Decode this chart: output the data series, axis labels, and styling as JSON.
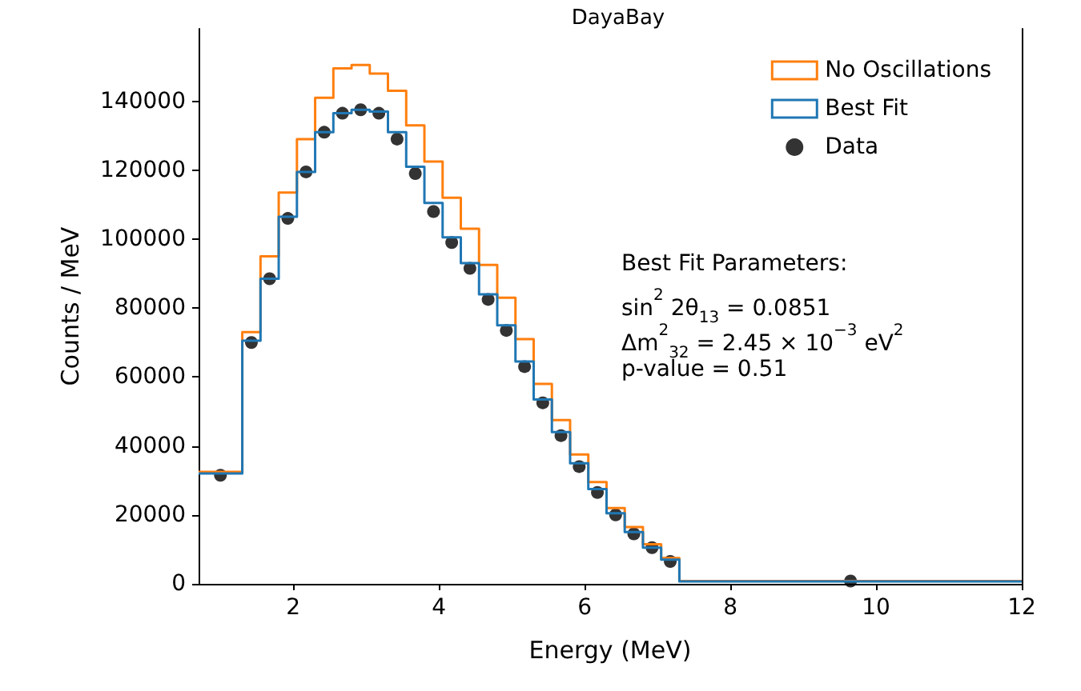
{
  "chart_data": {
    "type": "histogram",
    "title": "DayaBay",
    "xlabel": "Energy (MeV)",
    "ylabel": "Counts / MeV",
    "bins": [
      0.7,
      1.3,
      1.55,
      1.8,
      2.05,
      2.3,
      2.55,
      2.8,
      3.05,
      3.3,
      3.55,
      3.8,
      4.05,
      4.3,
      4.55,
      4.8,
      5.05,
      5.3,
      5.55,
      5.8,
      6.05,
      6.3,
      6.55,
      6.8,
      7.05,
      7.3,
      12
    ],
    "series": [
      {
        "name": "No Oscillations",
        "color": "#ff7f0e",
        "values": [
          32500,
          73000,
          95000,
          113500,
          129000,
          141000,
          149500,
          150500,
          148000,
          143000,
          133000,
          122500,
          112000,
          103000,
          92500,
          83000,
          71000,
          58000,
          47500,
          37500,
          29500,
          22000,
          16500,
          11500,
          7500,
          800
        ]
      },
      {
        "name": "Best Fit",
        "color": "#1f77b4",
        "values": [
          32000,
          70500,
          88500,
          106500,
          119500,
          131000,
          136500,
          137500,
          137000,
          131000,
          121000,
          110500,
          100500,
          93000,
          84000,
          75000,
          64500,
          53500,
          44000,
          35000,
          27500,
          20500,
          15000,
          10500,
          7000,
          700
        ]
      },
      {
        "name": "Data",
        "type": "scatter",
        "color": "#000000",
        "marker": "circle",
        "x": [
          1.0,
          1.425,
          1.675,
          1.925,
          2.175,
          2.425,
          2.675,
          2.925,
          3.175,
          3.425,
          3.675,
          3.925,
          4.175,
          4.425,
          4.675,
          4.925,
          5.175,
          5.425,
          5.675,
          5.925,
          6.175,
          6.425,
          6.675,
          6.925,
          7.175,
          9.65
        ],
        "values": [
          31500,
          70000,
          88500,
          106000,
          119500,
          131000,
          136500,
          137500,
          136500,
          129000,
          119000,
          108000,
          99000,
          91500,
          82500,
          73500,
          63000,
          52500,
          43000,
          34000,
          26500,
          20000,
          14500,
          10500,
          6500,
          800
        ]
      }
    ],
    "annotations": [
      "Best Fit Parameters:",
      "sin$^{2}$ 2θ$_{13}$ = 0.0851",
      "Δm$^{2}$$_{32}$ = 2.45 × 10$^{−3}$ eV$^{2}$",
      "p-value = 0.51"
    ],
    "xlim": [
      0.7,
      12
    ],
    "xticks": [
      2,
      4,
      6,
      8,
      10,
      12
    ],
    "ylim": [
      0,
      161000
    ],
    "yticks": [
      0,
      20000,
      40000,
      60000,
      80000,
      100000,
      120000,
      140000
    ],
    "grid": false,
    "legend": "top right"
  }
}
